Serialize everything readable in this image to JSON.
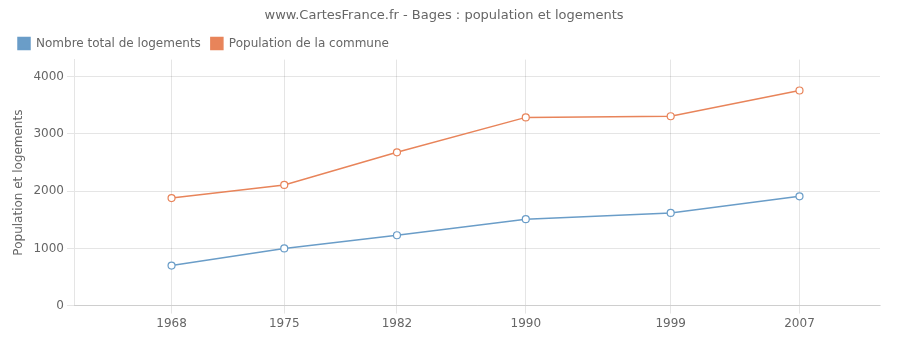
{
  "chart_data": {
    "type": "line",
    "title": "www.CartesFrance.fr - Bages : population et logements",
    "ylabel": "Population et logements",
    "x": [
      1968,
      1975,
      1982,
      1990,
      1999,
      2007
    ],
    "series": [
      {
        "name": "Nombre total de logements",
        "color": "#6a9dc8",
        "marker": "circle",
        "values": [
          700,
          1000,
          1230,
          1510,
          1620,
          1910
        ]
      },
      {
        "name": "Population de la commune",
        "color": "#e8845a",
        "marker": "circle",
        "values": [
          1880,
          2110,
          2680,
          3290,
          3310,
          3760
        ]
      }
    ],
    "xlim": [
      1962,
      2012
    ],
    "xticks": [
      1968,
      1975,
      1982,
      1990,
      1999,
      2007
    ],
    "ylim": [
      0,
      4300
    ],
    "yticks": [
      0,
      1000,
      2000,
      3000,
      4000
    ],
    "grid": true,
    "legend": "upper left"
  }
}
